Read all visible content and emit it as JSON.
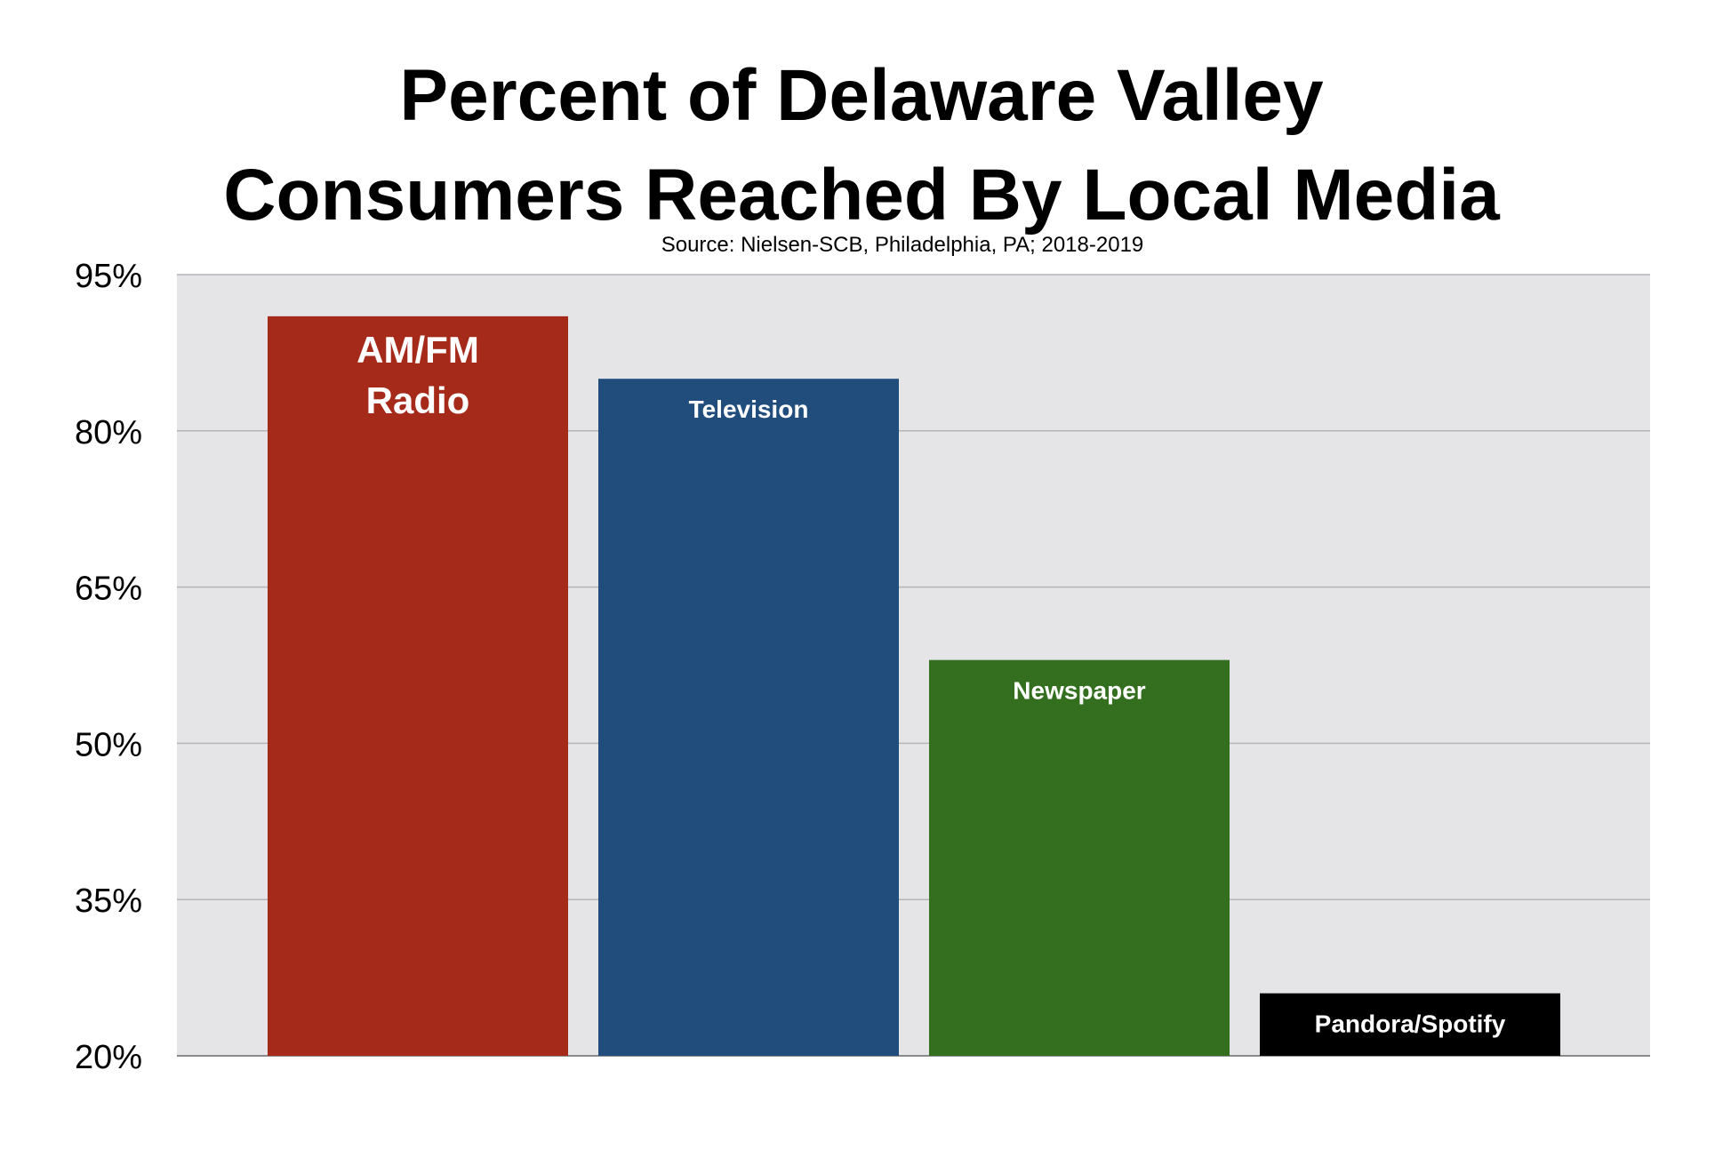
{
  "chart_data": {
    "type": "bar",
    "title_lines": [
      "Percent of Delaware Valley",
      "Consumers Reached By Local Media"
    ],
    "subtitle": "Source: Nielsen-SCB, Philadelphia, PA; 2018-2019",
    "categories": [
      "AM/FM Radio",
      "Television",
      "Newspaper",
      "Pandora/Spotify"
    ],
    "bar_label_lines": [
      [
        "AM/FM",
        "Radio"
      ],
      [
        "Television"
      ],
      [
        "Newspaper"
      ],
      [
        "Pandora/Spotify"
      ]
    ],
    "values": [
      91,
      85,
      58,
      26
    ],
    "colors": [
      "#a52a1a",
      "#214d7c",
      "#346f1f",
      "#000000"
    ],
    "ylim": [
      20,
      95
    ],
    "yticks": [
      20,
      35,
      50,
      65,
      80,
      95
    ],
    "ytick_labels": [
      "20%",
      "35%",
      "50%",
      "65%",
      "80%",
      "95%"
    ],
    "xlabel": "",
    "ylabel": "",
    "grid": true,
    "plot_background": "#e5e5e8",
    "grid_color": "#b5b5b8"
  }
}
